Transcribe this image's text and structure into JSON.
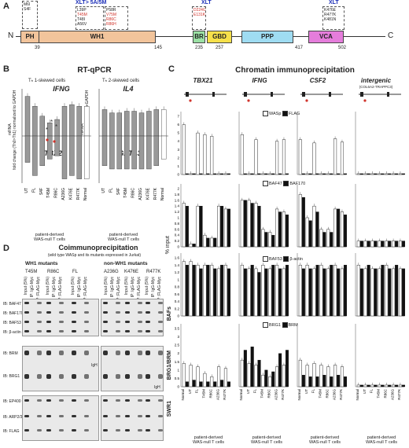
{
  "panels": {
    "a": {
      "letter": "A",
      "n_label": "N",
      "c_label": "C",
      "header_box1": "XLT> 5A/5M",
      "header_box2": "XLT",
      "header_box3": "XLT",
      "domains": [
        "PH",
        "WH1",
        "BR",
        "GBD",
        "PPP",
        "VCA"
      ],
      "ticks": [
        "39",
        "145",
        "235",
        "257",
        "417",
        "502"
      ],
      "box_ph": [
        "M6I",
        "S4F"
      ],
      "box_wh1": [
        "L39P",
        "T45M",
        "T48I",
        "A56V",
        "P58R",
        "V75M",
        "R86C",
        "R86H"
      ],
      "box_br": [
        "D224G",
        "E131K"
      ],
      "box_vca": [
        "K476E",
        "R477K",
        "K481N"
      ]
    },
    "b": {
      "letter": "B",
      "title": "RT-qPCR",
      "left_sub": "Tₕ 1-skewed cells",
      "right_sub": "Tₕ 2-skewed cells",
      "left_gene_top": "IFNG",
      "left_gene_bottom": "TBX21",
      "right_gene_top": "IL4",
      "right_gene_bottom": "GATA3",
      "ylabel": "mRNA\nfold change (Th0>Th1) normalized to GAPDH",
      "ylabel_r": "mRNA\nfold change (Th0>Th2) normalized to GAPDH",
      "xcats": [
        "UT",
        "FL",
        "S4F",
        "T45M",
        "R86C",
        "A236G",
        "K476E",
        "R477K",
        "Normal"
      ],
      "caption": "patient-derived\nWAS-null T cells"
    },
    "c": {
      "letter": "C",
      "title": "Chromatin immunoprecipitation",
      "genes": [
        "TBX21",
        "IFNG",
        "CSF2",
        "intergenic"
      ],
      "intergenic_sub": "(COL6A2-TRAPPC3)",
      "yaxis_label": "% input",
      "legends": [
        [
          "WASp",
          "FLAG"
        ],
        [
          "BAF47",
          "BAF170"
        ],
        [
          "BAF53",
          "β-actin"
        ],
        [
          "BRG1",
          "BRM"
        ]
      ],
      "xcats": [
        "Normal",
        "UT",
        "FL",
        "T45M",
        "R86C",
        "A236G",
        "R477K"
      ],
      "caption": "patient-derived\nWAS-null T cells"
    },
    "d": {
      "letter": "D",
      "title": "Coimmunoprecipitation",
      "subtitle": "(wild type WASp and its mutants expressed in Jurkat)",
      "left_group": "WH1 mutants",
      "right_group": "non-WH1 mutants",
      "left_mutants": [
        "T45M",
        "R86C",
        "FL"
      ],
      "right_mutants": [
        "A236G",
        "K476E",
        "R477K"
      ],
      "lane_labels": [
        "Input (5%)",
        "IP: IgG‐Myc",
        "IP: FLAG‐Myc"
      ],
      "blots": [
        "IB: BAF47",
        "IB: BAF170",
        "IB: BAF53",
        "IB: β-actin",
        "IB: BRM",
        "IB: BRG1",
        "IB: EP400",
        "IB: ARP2/3",
        "IB: FLAG"
      ],
      "complexes": [
        "BAFs",
        "BRG1/BRM",
        "SWR1"
      ],
      "igh": "IgH"
    }
  },
  "colors": {
    "ph": "#f2c49b",
    "wh1": "#f2c49b",
    "br": "#9be0a4",
    "gbd": "#f6e04a",
    "ppp": "#9fdcf2",
    "vca": "#e57ddb",
    "accent_red": "#d0332b",
    "accent_blue": "#1c2fb8"
  },
  "chart_data": [
    {
      "type": "bar",
      "title": "IFNG",
      "categories": [
        "UT",
        "FL",
        "S4F",
        "T45M",
        "R86C",
        "A236G",
        "K476E",
        "R477K",
        "Normal"
      ],
      "values": [
        1.2,
        0.9,
        0.6,
        0.4,
        0.5,
        0.9,
        0.95,
        0.9,
        0.9
      ]
    },
    {
      "type": "bar",
      "title": "TBX21",
      "categories": [
        "UT",
        "FL",
        "S4F",
        "T45M",
        "R86C",
        "A236G",
        "K476E",
        "R477K",
        "Normal"
      ],
      "values": [
        -0.8,
        -1.2,
        -0.9,
        -0.7,
        -0.6,
        -1.3,
        -1.2,
        -1.3,
        -1.3
      ]
    },
    {
      "type": "bar",
      "title": "IL4",
      "categories": [
        "UT",
        "FL",
        "S4F",
        "T45M",
        "R86C",
        "A236G",
        "K476E",
        "R477K",
        "Normal"
      ],
      "values": [
        0.8,
        0.7,
        0.7,
        0.75,
        0.75,
        0.7,
        0.75,
        0.8,
        0.8
      ]
    },
    {
      "type": "bar",
      "title": "GATA3",
      "categories": [
        "UT",
        "FL",
        "S4F",
        "T45M",
        "R86C",
        "A236G",
        "K476E",
        "R477K",
        "Normal"
      ],
      "values": [
        -0.9,
        -1.0,
        -1.0,
        -1.0,
        -1.0,
        -1.0,
        -1.0,
        -0.9,
        -0.7
      ]
    },
    {
      "type": "bar",
      "title": "TBX21",
      "categories": [
        "Normal",
        "UT",
        "FL",
        "T45M",
        "R86C",
        "A236G",
        "R477K"
      ],
      "series": [
        {
          "name": "WASp",
          "values": [
            6.0,
            0.1,
            5.0,
            4.8,
            4.6,
            0.1,
            0.1
          ]
        },
        {
          "name": "FLAG",
          "values": [
            0.1,
            0.1,
            0.1,
            0.1,
            0.1,
            0.1,
            0.1
          ]
        }
      ],
      "yticks": [
        "7",
        "6",
        "5",
        "4",
        "3",
        "2",
        "1",
        "0"
      ],
      "ylim": [
        0,
        7
      ]
    },
    {
      "type": "bar",
      "title": "IFNG",
      "categories": [
        "Normal",
        "UT",
        "FL",
        "T45M",
        "R86C",
        "A236G",
        "R477K"
      ],
      "series": [
        {
          "name": "WASp",
          "values": [
            4.8,
            0.1,
            4.2,
            0.1,
            0.1,
            4.0,
            4.2
          ]
        },
        {
          "name": "FLAG",
          "values": [
            0.1,
            0.1,
            0.1,
            0.1,
            0.1,
            0.1,
            0.1
          ]
        }
      ],
      "ylim": [
        0,
        7
      ]
    },
    {
      "type": "bar",
      "title": "CSF2",
      "categories": [
        "Normal",
        "UT",
        "FL",
        "T45M",
        "R86C",
        "A236G",
        "R477K"
      ],
      "series": [
        {
          "name": "WASp",
          "values": [
            4.2,
            0.1,
            3.8,
            0.1,
            0.1,
            4.3,
            3.9
          ]
        },
        {
          "name": "FLAG",
          "values": [
            0.1,
            0.1,
            0.1,
            0.1,
            0.1,
            0.1,
            0.1
          ]
        }
      ],
      "ylim": [
        0,
        7
      ]
    },
    {
      "type": "bar",
      "title": "intergenic",
      "categories": [
        "Normal",
        "UT",
        "FL",
        "T45M",
        "R86C",
        "A236G",
        "R477K"
      ],
      "series": [
        {
          "name": "WASp",
          "values": [
            0.1,
            0.1,
            0.1,
            0.1,
            0.1,
            0.1,
            0.1
          ]
        },
        {
          "name": "FLAG",
          "values": [
            0.1,
            0.1,
            0.1,
            0.1,
            0.1,
            0.1,
            0.1
          ]
        }
      ],
      "ylim": [
        0,
        7
      ]
    },
    {
      "type": "bar",
      "title": "TBX21",
      "categories": [
        "Normal",
        "UT",
        "FL",
        "T45M",
        "R86C",
        "A236G",
        "R477K"
      ],
      "series": [
        {
          "name": "BAF47",
          "values": [
            1.5,
            0.1,
            1.4,
            0.4,
            0.3,
            1.4,
            1.3
          ]
        },
        {
          "name": "BAF170",
          "values": [
            1.4,
            0.1,
            1.4,
            0.3,
            0.3,
            1.4,
            1.3
          ]
        }
      ],
      "yticks": [
        "2",
        "1.8",
        "1.6",
        "1.4",
        "1.2",
        "1",
        "0.8",
        "0.6",
        "0.4",
        "0.2",
        "0"
      ],
      "ylim": [
        0,
        2
      ]
    },
    {
      "type": "bar",
      "title": "IFNG",
      "categories": [
        "Normal",
        "UT",
        "FL",
        "T45M",
        "R86C",
        "A236G",
        "R477K"
      ],
      "series": [
        {
          "name": "BAF47",
          "values": [
            1.6,
            1.6,
            1.5,
            0.6,
            0.5,
            1.3,
            1.2
          ]
        },
        {
          "name": "BAF170",
          "values": [
            1.6,
            1.5,
            1.4,
            0.5,
            0.4,
            1.2,
            1.1
          ]
        }
      ],
      "ylim": [
        0,
        2
      ]
    },
    {
      "type": "bar",
      "title": "CSF2",
      "categories": [
        "Normal",
        "UT",
        "FL",
        "T45M",
        "R86C",
        "A236G",
        "R477K"
      ],
      "series": [
        {
          "name": "BAF47",
          "values": [
            1.8,
            1.0,
            1.4,
            0.6,
            0.6,
            1.3,
            1.2
          ]
        },
        {
          "name": "BAF170",
          "values": [
            1.7,
            0.9,
            1.2,
            0.5,
            0.5,
            1.3,
            1.1
          ]
        }
      ],
      "ylim": [
        0,
        2
      ]
    },
    {
      "type": "bar",
      "title": "intergenic",
      "categories": [
        "Normal",
        "UT",
        "FL",
        "T45M",
        "R86C",
        "A236G",
        "R477K"
      ],
      "series": [
        {
          "name": "BAF47",
          "values": [
            0.2,
            0.2,
            0.2,
            0.2,
            0.2,
            0.2,
            0.2
          ]
        },
        {
          "name": "BAF170",
          "values": [
            0.2,
            0.2,
            0.2,
            0.2,
            0.2,
            0.2,
            0.2
          ]
        }
      ],
      "ylim": [
        0,
        2
      ]
    },
    {
      "type": "bar",
      "title": "TBX21",
      "categories": [
        "Normal",
        "UT",
        "FL",
        "T45M",
        "R86C",
        "A236G",
        "R477K"
      ],
      "series": [
        {
          "name": "BAF53",
          "values": [
            1.5,
            1.5,
            1.4,
            1.4,
            1.4,
            1.3,
            1.4
          ]
        },
        {
          "name": "β-actin",
          "values": [
            1.4,
            1.4,
            1.3,
            1.4,
            1.3,
            1.4,
            1.3
          ]
        }
      ],
      "yticks": [
        "1.6",
        "1.4",
        "1.2",
        "1",
        "0.8",
        "0.6",
        "0.4",
        "0.2",
        "0"
      ],
      "ylim": [
        0,
        1.6
      ]
    },
    {
      "type": "bar",
      "title": "IFNG",
      "categories": [
        "Normal",
        "UT",
        "FL",
        "T45M",
        "R86C",
        "A236G",
        "R477K"
      ],
      "series": [
        {
          "name": "BAF53",
          "values": [
            1.4,
            1.3,
            1.3,
            1.4,
            1.3,
            1.4,
            1.3
          ]
        },
        {
          "name": "β-actin",
          "values": [
            1.3,
            1.4,
            1.2,
            1.3,
            1.4,
            1.3,
            1.4
          ]
        }
      ],
      "ylim": [
        0,
        1.6
      ]
    },
    {
      "type": "bar",
      "title": "CSF2",
      "categories": [
        "Normal",
        "UT",
        "FL",
        "T45M",
        "R86C",
        "A236G",
        "R477K"
      ],
      "series": [
        {
          "name": "BAF53",
          "values": [
            1.4,
            1.4,
            1.3,
            1.4,
            1.3,
            1.4,
            1.3
          ]
        },
        {
          "name": "β-actin",
          "values": [
            1.3,
            1.3,
            1.4,
            1.3,
            1.4,
            1.3,
            1.4
          ]
        }
      ],
      "ylim": [
        0,
        1.6
      ]
    },
    {
      "type": "bar",
      "title": "intergenic",
      "categories": [
        "Normal",
        "UT",
        "FL",
        "T45M",
        "R86C",
        "A236G",
        "R477K"
      ],
      "series": [
        {
          "name": "BAF53",
          "values": [
            1.4,
            1.3,
            1.3,
            1.3,
            1.4,
            1.3,
            1.3
          ]
        },
        {
          "name": "β-actin",
          "values": [
            1.3,
            1.4,
            1.3,
            1.4,
            1.3,
            1.4,
            1.3
          ]
        }
      ],
      "ylim": [
        0,
        1.6
      ]
    },
    {
      "type": "bar",
      "title": "TBX21",
      "categories": [
        "Normal",
        "UT",
        "FL",
        "T45M",
        "R86C",
        "A236G",
        "R477K"
      ],
      "series": [
        {
          "name": "BRG1",
          "values": [
            1.4,
            1.3,
            1.2,
            0.8,
            0.6,
            1.2,
            1.1
          ]
        },
        {
          "name": "BRM",
          "values": [
            0.3,
            0.4,
            0.3,
            0.3,
            0.3,
            0.4,
            0.3
          ]
        }
      ],
      "yticks": [
        "3.5",
        "3",
        "2.5",
        "2",
        "1.5",
        "1",
        "0.5",
        "0"
      ],
      "ylim": [
        0,
        3.5
      ]
    },
    {
      "type": "bar",
      "title": "IFNG",
      "categories": [
        "Normal",
        "UT",
        "FL",
        "T45M",
        "R86C",
        "A236G",
        "R477K"
      ],
      "series": [
        {
          "name": "BRG1",
          "values": [
            1.6,
            1.4,
            1.3,
            0.7,
            0.6,
            1.2,
            1.3
          ]
        },
        {
          "name": "BRM",
          "values": [
            2.2,
            2.4,
            1.6,
            1.0,
            0.9,
            2.0,
            2.2
          ]
        }
      ],
      "ylim": [
        0,
        3.5
      ]
    },
    {
      "type": "bar",
      "title": "CSF2",
      "categories": [
        "Normal",
        "UT",
        "FL",
        "T45M",
        "R86C",
        "A236G",
        "R477K"
      ],
      "series": [
        {
          "name": "BRG1",
          "values": [
            1.6,
            1.3,
            1.4,
            1.3,
            1.2,
            1.3,
            1.2
          ]
        },
        {
          "name": "BRM",
          "values": [
            0.7,
            0.6,
            0.6,
            0.7,
            0.6,
            0.7,
            0.6
          ]
        }
      ],
      "ylim": [
        0,
        3.5
      ]
    },
    {
      "type": "bar",
      "title": "intergenic",
      "categories": [
        "Normal",
        "UT",
        "FL",
        "T45M",
        "R86C",
        "A236G",
        "R477K"
      ],
      "series": [
        {
          "name": "BRG1",
          "values": [
            0.1,
            0.1,
            0.1,
            0.1,
            0.1,
            0.1,
            0.1
          ]
        },
        {
          "name": "BRM",
          "values": [
            0.1,
            0.1,
            0.1,
            0.1,
            0.1,
            0.1,
            0.1
          ]
        }
      ],
      "ylim": [
        0,
        3.5
      ]
    }
  ]
}
